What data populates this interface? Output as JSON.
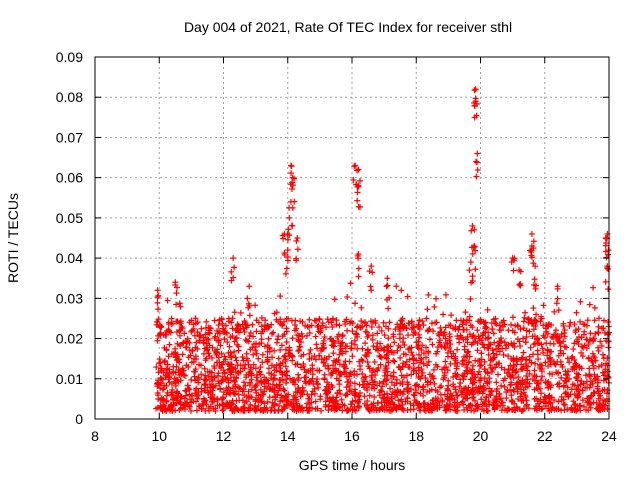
{
  "chart_data": {
    "type": "scatter",
    "title": "Day 004 of 2021, Rate Of TEC Index for receiver sthl",
    "xlabel": "GPS time / hours",
    "ylabel": "ROTI / TECUs",
    "xlim": [
      8,
      24
    ],
    "ylim": [
      0,
      0.09
    ],
    "x_ticks": [
      "8",
      "10",
      "12",
      "14",
      "16",
      "18",
      "20",
      "22",
      "24"
    ],
    "y_ticks": [
      "0",
      "0.01",
      "0.02",
      "0.03",
      "0.04",
      "0.05",
      "0.06",
      "0.07",
      "0.08",
      "0.09"
    ],
    "grid": true,
    "marker": "+",
    "color": "#ff0000",
    "x_range_observed": [
      9.9,
      24.0
    ],
    "typical_band": [
      0.002,
      0.025
    ],
    "peaks": [
      {
        "x": 9.95,
        "y": 0.032
      },
      {
        "x": 10.5,
        "y": 0.034
      },
      {
        "x": 12.3,
        "y": 0.04
      },
      {
        "x": 12.8,
        "y": 0.033
      },
      {
        "x": 13.9,
        "y": 0.046
      },
      {
        "x": 14.1,
        "y": 0.063
      },
      {
        "x": 14.15,
        "y": 0.06
      },
      {
        "x": 14.1,
        "y": 0.054
      },
      {
        "x": 14.05,
        "y": 0.05
      },
      {
        "x": 14.3,
        "y": 0.045
      },
      {
        "x": 14.0,
        "y": 0.042
      },
      {
        "x": 16.1,
        "y": 0.063
      },
      {
        "x": 16.2,
        "y": 0.062
      },
      {
        "x": 16.2,
        "y": 0.058
      },
      {
        "x": 16.2,
        "y": 0.041
      },
      {
        "x": 16.6,
        "y": 0.038
      },
      {
        "x": 17.1,
        "y": 0.035
      },
      {
        "x": 19.75,
        "y": 0.048
      },
      {
        "x": 19.8,
        "y": 0.043
      },
      {
        "x": 19.85,
        "y": 0.082
      },
      {
        "x": 19.85,
        "y": 0.079
      },
      {
        "x": 19.9,
        "y": 0.066
      },
      {
        "x": 19.7,
        "y": 0.039
      },
      {
        "x": 21.0,
        "y": 0.04
      },
      {
        "x": 21.2,
        "y": 0.037
      },
      {
        "x": 21.6,
        "y": 0.046
      },
      {
        "x": 21.6,
        "y": 0.043
      },
      {
        "x": 21.7,
        "y": 0.038
      },
      {
        "x": 22.4,
        "y": 0.033
      },
      {
        "x": 23.95,
        "y": 0.046
      },
      {
        "x": 23.9,
        "y": 0.045
      },
      {
        "x": 23.95,
        "y": 0.038
      }
    ]
  }
}
